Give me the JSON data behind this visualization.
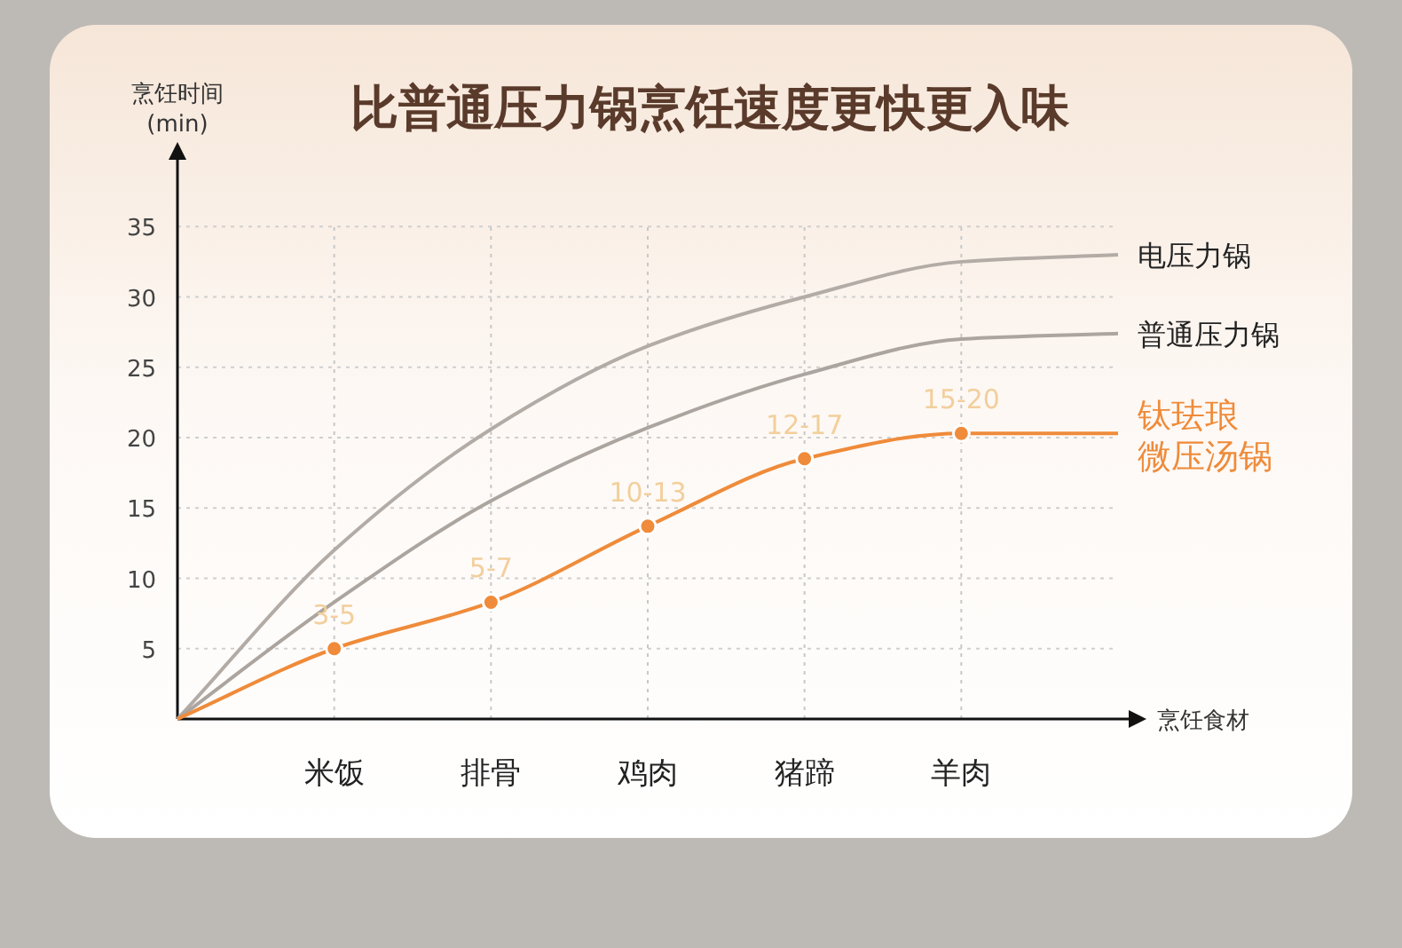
{
  "chart_data": {
    "type": "line",
    "title": "比普通压力锅烹饪速度更快更入味",
    "ylabel": "烹饪时间\n(min)",
    "xlabel": "烹饪食材",
    "categories": [
      null,
      "米饭",
      "排骨",
      "鸡肉",
      "猪蹄",
      "羊肉",
      null
    ],
    "ylim": [
      0,
      40
    ],
    "yticks": [
      5,
      10,
      15,
      20,
      25,
      30,
      35
    ],
    "grid": "y",
    "series": [
      {
        "name": "电压力锅",
        "color": "#b3aba5",
        "values": [
          0,
          12,
          20.6,
          26.5,
          30,
          32.5,
          33
        ],
        "marker": "none"
      },
      {
        "name": "普通压力锅",
        "color": "#aca59f",
        "values": [
          0,
          8.3,
          15.5,
          20.7,
          24.5,
          27,
          27.4
        ],
        "marker": "none"
      },
      {
        "name": "钛珐琅微压汤锅",
        "color": "#ef8b3a",
        "values": [
          0,
          5,
          8.3,
          13.7,
          18.5,
          20.3,
          20.3
        ],
        "marker": "circle",
        "value_labels": [
          null,
          "3-5",
          "5-7",
          "10-13",
          "12-17",
          "15-20",
          null
        ]
      }
    ],
    "ref_lines": [
      {
        "axis": "x",
        "value": "米饭",
        "line_style": "dotted",
        "color": "#c8c8c8"
      },
      {
        "axis": "x",
        "value": "排骨",
        "line_style": "dotted",
        "color": "#c8c8c8"
      },
      {
        "axis": "x",
        "value": "鸡肉",
        "line_style": "dotted",
        "color": "#c8c8c8"
      },
      {
        "axis": "x",
        "value": "猪蹄",
        "line_style": "dotted",
        "color": "#c8c8c8"
      },
      {
        "axis": "x",
        "value": "羊肉",
        "line_style": "dotted",
        "color": "#c8c8c8"
      }
    ]
  }
}
